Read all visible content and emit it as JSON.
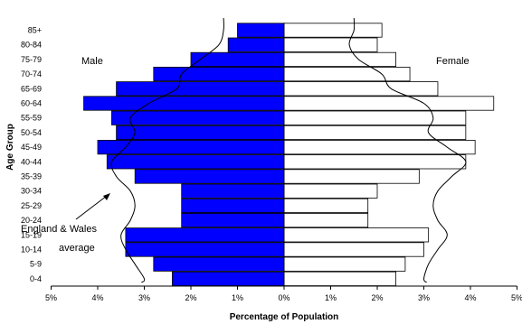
{
  "chart_data": {
    "type": "bar",
    "orientation": "horizontal",
    "subtype": "population-pyramid",
    "categories": [
      "0-4",
      "5-9",
      "10-14",
      "15-19",
      "20-24",
      "25-29",
      "30-34",
      "35-39",
      "40-44",
      "45-49",
      "50-54",
      "55-59",
      "60-64",
      "65-69",
      "70-74",
      "75-79",
      "80-84",
      "85+"
    ],
    "series": [
      {
        "name": "Male",
        "color": "#0000ff",
        "values": [
          2.4,
          2.8,
          3.4,
          3.4,
          2.2,
          2.2,
          2.2,
          3.2,
          3.8,
          4.0,
          3.6,
          3.7,
          4.3,
          3.6,
          2.8,
          2.0,
          1.2,
          1.0
        ]
      },
      {
        "name": "Female",
        "color": "#ffffff",
        "values": [
          2.4,
          2.6,
          3.0,
          3.1,
          1.8,
          1.8,
          2.0,
          2.9,
          3.9,
          4.1,
          3.9,
          3.9,
          4.5,
          3.3,
          2.7,
          2.4,
          2.0,
          2.1
        ]
      }
    ],
    "reference_lines": [
      {
        "side": "Male",
        "values": [
          3.0,
          3.2,
          3.4,
          3.5,
          3.3,
          3.2,
          3.3,
          3.6,
          3.7,
          3.4,
          3.2,
          3.3,
          2.9,
          2.3,
          2.2,
          1.8,
          1.4,
          1.3
        ]
      },
      {
        "side": "Female",
        "values": [
          3.0,
          3.1,
          3.3,
          3.5,
          3.3,
          3.2,
          3.3,
          3.6,
          3.9,
          3.5,
          3.1,
          3.2,
          3.0,
          2.3,
          2.1,
          1.6,
          1.4,
          1.5
        ]
      }
    ],
    "xlim": [
      -5,
      5
    ],
    "xticks": [
      -5,
      -4,
      -3,
      -2,
      -1,
      0,
      1,
      2,
      3,
      4,
      5
    ],
    "xtick_labels": [
      "5%",
      "4%",
      "3%",
      "2%",
      "1%",
      "0%",
      "1%",
      "2%",
      "3%",
      "4%",
      "5%"
    ],
    "xlabel": "Percentage of Population",
    "ylabel": "Age Group",
    "male_label": "Male",
    "female_label": "Female",
    "annotation_line1": "England & Wales",
    "annotation_line2": "average",
    "grid": false
  }
}
